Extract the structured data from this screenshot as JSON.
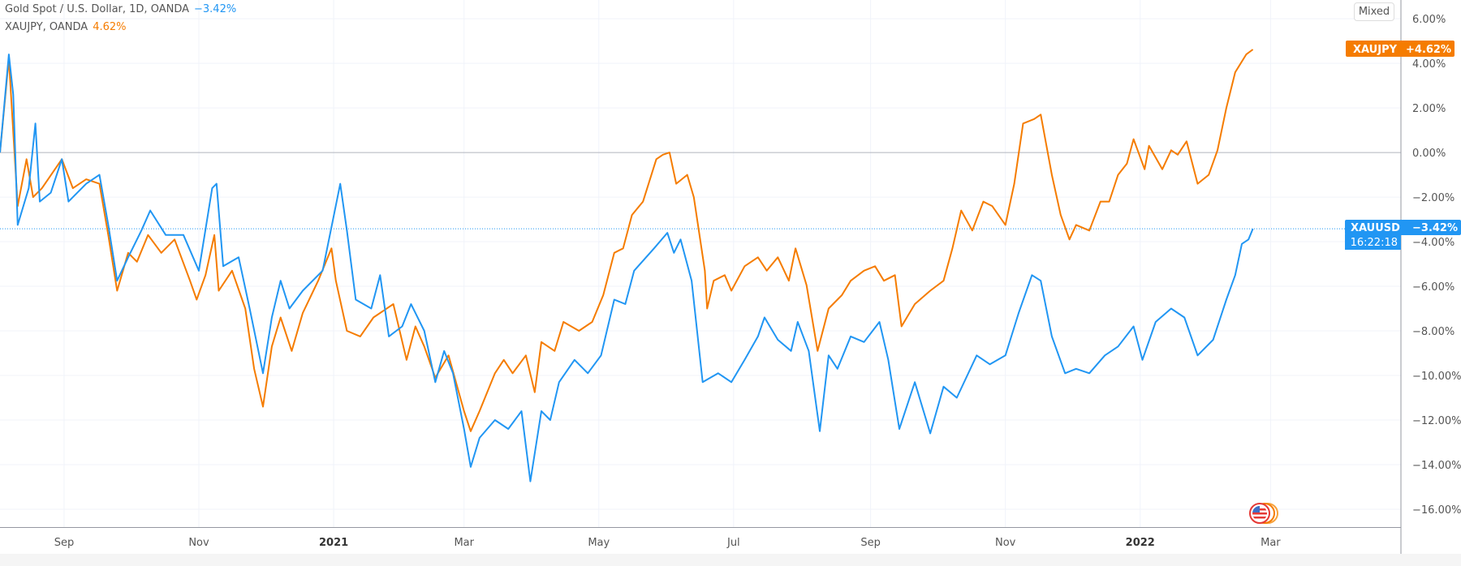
{
  "legend": {
    "series1_title": "Gold Spot / U.S. Dollar, 1D, OANDA",
    "series1_change": "−3.42%",
    "series2_title": "XAUJPY, OANDA",
    "series2_change": "4.62%"
  },
  "scale_mode_button": "Mixed",
  "badges": {
    "xaujpy": {
      "symbol": "XAUJPY",
      "value": "+4.62%"
    },
    "xauusd": {
      "symbol": "XAUUSD",
      "value": "−3.42%",
      "countdown": "16:22:18"
    }
  },
  "colors": {
    "xauusd": "#2196f3",
    "xaujpy": "#f57c00",
    "grid": "#f0f3fa",
    "zero_line": "#b2b5be",
    "axis_text": "#555555"
  },
  "icons": {
    "event_marker": "us-flag-icon"
  },
  "chart_data": {
    "type": "line",
    "xlim": [
      "2020-08-03",
      "2022-04-29"
    ],
    "ylim": [
      -16.8,
      6.84
    ],
    "y_unit": "%",
    "grid": true,
    "price_scale": "right",
    "y_ticks": [
      6,
      4,
      2,
      0,
      -2,
      -4,
      -6,
      -8,
      -10,
      -12,
      -14,
      -16
    ],
    "y_tick_labels": [
      "6.00%",
      "4.00%",
      "2.00%",
      "0.00%",
      "−2.00%",
      "−4.00%",
      "−6.00%",
      "−8.00%",
      "−10.00%",
      "−12.00%",
      "−14.00%",
      "−16.00%"
    ],
    "x_ticks": [
      {
        "date": "2020-09-01",
        "label": "Sep",
        "bold": false
      },
      {
        "date": "2020-11-01",
        "label": "Nov",
        "bold": false
      },
      {
        "date": "2021-01-01",
        "label": "2021",
        "bold": true
      },
      {
        "date": "2021-03-01",
        "label": "Mar",
        "bold": false
      },
      {
        "date": "2021-05-01",
        "label": "May",
        "bold": false
      },
      {
        "date": "2021-07-01",
        "label": "Jul",
        "bold": false
      },
      {
        "date": "2021-09-01",
        "label": "Sep",
        "bold": false
      },
      {
        "date": "2021-11-01",
        "label": "Nov",
        "bold": false
      },
      {
        "date": "2022-01-01",
        "label": "2022",
        "bold": true
      },
      {
        "date": "2022-03-01",
        "label": "Mar",
        "bold": false
      }
    ],
    "series": [
      {
        "name": "XAUUSD",
        "last": -3.42,
        "points": [
          [
            "2020-08-03",
            0
          ],
          [
            "2020-08-07",
            4.4
          ],
          [
            "2020-08-09",
            2.6
          ],
          [
            "2020-08-11",
            -3.25
          ],
          [
            "2020-08-16",
            -1.6
          ],
          [
            "2020-08-19",
            1.3
          ],
          [
            "2020-08-21",
            -2.2
          ],
          [
            "2020-08-26",
            -1.8
          ],
          [
            "2020-08-31",
            -0.3
          ],
          [
            "2020-09-03",
            -2.2
          ],
          [
            "2020-09-11",
            -1.4
          ],
          [
            "2020-09-17",
            -1.0
          ],
          [
            "2020-09-21",
            -3.25
          ],
          [
            "2020-09-25",
            -5.75
          ],
          [
            "2020-09-30",
            -4.7
          ],
          [
            "2020-10-06",
            -3.5
          ],
          [
            "2020-10-10",
            -2.6
          ],
          [
            "2020-10-17",
            -3.7
          ],
          [
            "2020-10-25",
            -3.7
          ],
          [
            "2020-11-01",
            -5.3
          ],
          [
            "2020-11-07",
            -1.6
          ],
          [
            "2020-11-09",
            -1.4
          ],
          [
            "2020-11-12",
            -5.1
          ],
          [
            "2020-11-19",
            -4.7
          ],
          [
            "2020-11-24",
            -7
          ],
          [
            "2020-11-30",
            -9.9
          ],
          [
            "2020-12-04",
            -7.4
          ],
          [
            "2020-12-08",
            -5.75
          ],
          [
            "2020-12-12",
            -7
          ],
          [
            "2020-12-18",
            -6.2
          ],
          [
            "2020-12-27",
            -5.3
          ],
          [
            "2021-01-04",
            -1.4
          ],
          [
            "2021-01-07",
            -3.5
          ],
          [
            "2021-01-11",
            -6.6
          ],
          [
            "2021-01-18",
            -7
          ],
          [
            "2021-01-22",
            -5.5
          ],
          [
            "2021-01-26",
            -8.25
          ],
          [
            "2021-02-01",
            -7.8
          ],
          [
            "2021-02-05",
            -6.8
          ],
          [
            "2021-02-11",
            -8.0
          ],
          [
            "2021-02-16",
            -10.3
          ],
          [
            "2021-02-20",
            -8.9
          ],
          [
            "2021-02-24",
            -9.9
          ],
          [
            "2021-03-01",
            -12.4
          ],
          [
            "2021-03-04",
            -14.1
          ],
          [
            "2021-03-08",
            -12.8
          ],
          [
            "2021-03-15",
            -12
          ],
          [
            "2021-03-21",
            -12.4
          ],
          [
            "2021-03-27",
            -11.6
          ],
          [
            "2021-03-31",
            -14.75
          ],
          [
            "2021-04-05",
            -11.6
          ],
          [
            "2021-04-09",
            -12
          ],
          [
            "2021-04-13",
            -10.3
          ],
          [
            "2021-04-20",
            -9.3
          ],
          [
            "2021-04-26",
            -9.9
          ],
          [
            "2021-05-02",
            -9.1
          ],
          [
            "2021-05-08",
            -6.6
          ],
          [
            "2021-05-13",
            -6.8
          ],
          [
            "2021-05-17",
            -5.3
          ],
          [
            "2021-05-26",
            -4.3
          ],
          [
            "2021-06-01",
            -3.6
          ],
          [
            "2021-06-04",
            -4.5
          ],
          [
            "2021-06-07",
            -3.9
          ],
          [
            "2021-06-12",
            -5.75
          ],
          [
            "2021-06-17",
            -10.3
          ],
          [
            "2021-06-24",
            -9.9
          ],
          [
            "2021-06-30",
            -10.3
          ],
          [
            "2021-07-06",
            -9.3
          ],
          [
            "2021-07-12",
            -8.25
          ],
          [
            "2021-07-15",
            -7.4
          ],
          [
            "2021-07-21",
            -8.4
          ],
          [
            "2021-07-27",
            -8.9
          ],
          [
            "2021-07-30",
            -7.6
          ],
          [
            "2021-08-04",
            -8.9
          ],
          [
            "2021-08-09",
            -12.5
          ],
          [
            "2021-08-13",
            -9.1
          ],
          [
            "2021-08-17",
            -9.7
          ],
          [
            "2021-08-23",
            -8.25
          ],
          [
            "2021-08-29",
            -8.5
          ],
          [
            "2021-09-05",
            -7.6
          ],
          [
            "2021-09-09",
            -9.3
          ],
          [
            "2021-09-14",
            -12.4
          ],
          [
            "2021-09-21",
            -10.3
          ],
          [
            "2021-09-28",
            -12.6
          ],
          [
            "2021-10-04",
            -10.5
          ],
          [
            "2021-10-10",
            -11
          ],
          [
            "2021-10-19",
            -9.1
          ],
          [
            "2021-10-25",
            -9.5
          ],
          [
            "2021-11-01",
            -9.1
          ],
          [
            "2021-11-07",
            -7.2
          ],
          [
            "2021-11-13",
            -5.5
          ],
          [
            "2021-11-17",
            -5.75
          ],
          [
            "2021-11-22",
            -8.25
          ],
          [
            "2021-11-28",
            -9.9
          ],
          [
            "2021-12-03",
            -9.7
          ],
          [
            "2021-12-09",
            -9.9
          ],
          [
            "2021-12-16",
            -9.1
          ],
          [
            "2021-12-22",
            -8.7
          ],
          [
            "2021-12-29",
            -7.8
          ],
          [
            "2022-01-02",
            -9.3
          ],
          [
            "2022-01-08",
            -7.6
          ],
          [
            "2022-01-15",
            -7
          ],
          [
            "2022-01-21",
            -7.4
          ],
          [
            "2022-01-27",
            -9.1
          ],
          [
            "2022-02-03",
            -8.4
          ],
          [
            "2022-02-09",
            -6.6
          ],
          [
            "2022-02-13",
            -5.5
          ],
          [
            "2022-02-16",
            -4.1
          ],
          [
            "2022-02-19",
            -3.9
          ],
          [
            "2022-02-21",
            -3.42
          ]
        ]
      },
      {
        "name": "XAUJPY",
        "last": 4.62,
        "points": [
          [
            "2020-08-03",
            0
          ],
          [
            "2020-08-07",
            4.2
          ],
          [
            "2020-08-11",
            -2.4
          ],
          [
            "2020-08-15",
            -0.3
          ],
          [
            "2020-08-18",
            -2
          ],
          [
            "2020-08-22",
            -1.6
          ],
          [
            "2020-08-31",
            -0.3
          ],
          [
            "2020-09-05",
            -1.6
          ],
          [
            "2020-09-11",
            -1.2
          ],
          [
            "2020-09-17",
            -1.4
          ],
          [
            "2020-09-21",
            -3.7
          ],
          [
            "2020-09-25",
            -6.2
          ],
          [
            "2020-09-30",
            -4.5
          ],
          [
            "2020-10-04",
            -4.9
          ],
          [
            "2020-10-09",
            -3.7
          ],
          [
            "2020-10-15",
            -4.5
          ],
          [
            "2020-10-21",
            -3.9
          ],
          [
            "2020-10-28",
            -5.75
          ],
          [
            "2020-10-31",
            -6.6
          ],
          [
            "2020-11-04",
            -5.5
          ],
          [
            "2020-11-08",
            -3.7
          ],
          [
            "2020-11-10",
            -6.2
          ],
          [
            "2020-11-16",
            -5.3
          ],
          [
            "2020-11-22",
            -7
          ],
          [
            "2020-11-26",
            -9.7
          ],
          [
            "2020-11-30",
            -11.4
          ],
          [
            "2020-12-04",
            -8.7
          ],
          [
            "2020-12-08",
            -7.4
          ],
          [
            "2020-12-13",
            -8.9
          ],
          [
            "2020-12-18",
            -7.2
          ],
          [
            "2020-12-25",
            -5.75
          ],
          [
            "2020-12-31",
            -4.3
          ],
          [
            "2021-01-02",
            -5.75
          ],
          [
            "2021-01-07",
            -8.0
          ],
          [
            "2021-01-13",
            -8.25
          ],
          [
            "2021-01-19",
            -7.4
          ],
          [
            "2021-01-28",
            -6.8
          ],
          [
            "2021-02-03",
            -9.3
          ],
          [
            "2021-02-07",
            -7.8
          ],
          [
            "2021-02-11",
            -8.7
          ],
          [
            "2021-02-16",
            -10.1
          ],
          [
            "2021-02-22",
            -9.1
          ],
          [
            "2021-03-01",
            -11.6
          ],
          [
            "2021-03-04",
            -12.5
          ],
          [
            "2021-03-08",
            -11.6
          ],
          [
            "2021-03-15",
            -9.9
          ],
          [
            "2021-03-19",
            -9.3
          ],
          [
            "2021-03-23",
            -9.9
          ],
          [
            "2021-03-29",
            -9.1
          ],
          [
            "2021-04-02",
            -10.75
          ],
          [
            "2021-04-05",
            -8.5
          ],
          [
            "2021-04-11",
            -8.9
          ],
          [
            "2021-04-15",
            -7.6
          ],
          [
            "2021-04-22",
            -8
          ],
          [
            "2021-04-28",
            -7.6
          ],
          [
            "2021-05-03",
            -6.4
          ],
          [
            "2021-05-08",
            -4.5
          ],
          [
            "2021-05-12",
            -4.3
          ],
          [
            "2021-05-16",
            -2.8
          ],
          [
            "2021-05-21",
            -2.2
          ],
          [
            "2021-05-27",
            -0.3
          ],
          [
            "2021-05-30",
            -0.1
          ],
          [
            "2021-06-02",
            0
          ],
          [
            "2021-06-05",
            -1.4
          ],
          [
            "2021-06-10",
            -1.0
          ],
          [
            "2021-06-13",
            -2
          ],
          [
            "2021-06-18",
            -5.3
          ],
          [
            "2021-06-19",
            -7
          ],
          [
            "2021-06-22",
            -5.75
          ],
          [
            "2021-06-27",
            -5.5
          ],
          [
            "2021-06-30",
            -6.2
          ],
          [
            "2021-07-06",
            -5.1
          ],
          [
            "2021-07-12",
            -4.7
          ],
          [
            "2021-07-16",
            -5.3
          ],
          [
            "2021-07-21",
            -4.7
          ],
          [
            "2021-07-26",
            -5.75
          ],
          [
            "2021-07-29",
            -4.3
          ],
          [
            "2021-08-03",
            -5.95
          ],
          [
            "2021-08-08",
            -8.9
          ],
          [
            "2021-08-13",
            -7
          ],
          [
            "2021-08-19",
            -6.4
          ],
          [
            "2021-08-23",
            -5.75
          ],
          [
            "2021-08-29",
            -5.3
          ],
          [
            "2021-09-03",
            -5.1
          ],
          [
            "2021-09-07",
            -5.75
          ],
          [
            "2021-09-12",
            -5.5
          ],
          [
            "2021-09-15",
            -7.8
          ],
          [
            "2021-09-21",
            -6.8
          ],
          [
            "2021-09-28",
            -6.2
          ],
          [
            "2021-10-04",
            -5.75
          ],
          [
            "2021-10-08",
            -4.3
          ],
          [
            "2021-10-12",
            -2.6
          ],
          [
            "2021-10-17",
            -3.5
          ],
          [
            "2021-10-22",
            -2.2
          ],
          [
            "2021-10-26",
            -2.4
          ],
          [
            "2021-11-01",
            -3.25
          ],
          [
            "2021-11-05",
            -1.4
          ],
          [
            "2021-11-09",
            1.3
          ],
          [
            "2021-11-14",
            1.5
          ],
          [
            "2021-11-17",
            1.7
          ],
          [
            "2021-11-22",
            -1.0
          ],
          [
            "2021-11-26",
            -2.8
          ],
          [
            "2021-11-30",
            -3.9
          ],
          [
            "2021-12-03",
            -3.25
          ],
          [
            "2021-12-09",
            -3.5
          ],
          [
            "2021-12-14",
            -2.2
          ],
          [
            "2021-12-18",
            -2.2
          ],
          [
            "2021-12-22",
            -1.0
          ],
          [
            "2021-12-26",
            -0.5
          ],
          [
            "2021-12-29",
            0.6
          ],
          [
            "2022-01-03",
            -0.75
          ],
          [
            "2022-01-05",
            0.3
          ],
          [
            "2022-01-11",
            -0.75
          ],
          [
            "2022-01-15",
            0.1
          ],
          [
            "2022-01-18",
            -0.1
          ],
          [
            "2022-01-22",
            0.5
          ],
          [
            "2022-01-27",
            -1.4
          ],
          [
            "2022-02-01",
            -1.0
          ],
          [
            "2022-02-05",
            0.1
          ],
          [
            "2022-02-09",
            2
          ],
          [
            "2022-02-13",
            3.6
          ],
          [
            "2022-02-18",
            4.4
          ],
          [
            "2022-02-21",
            4.62
          ]
        ]
      }
    ]
  }
}
